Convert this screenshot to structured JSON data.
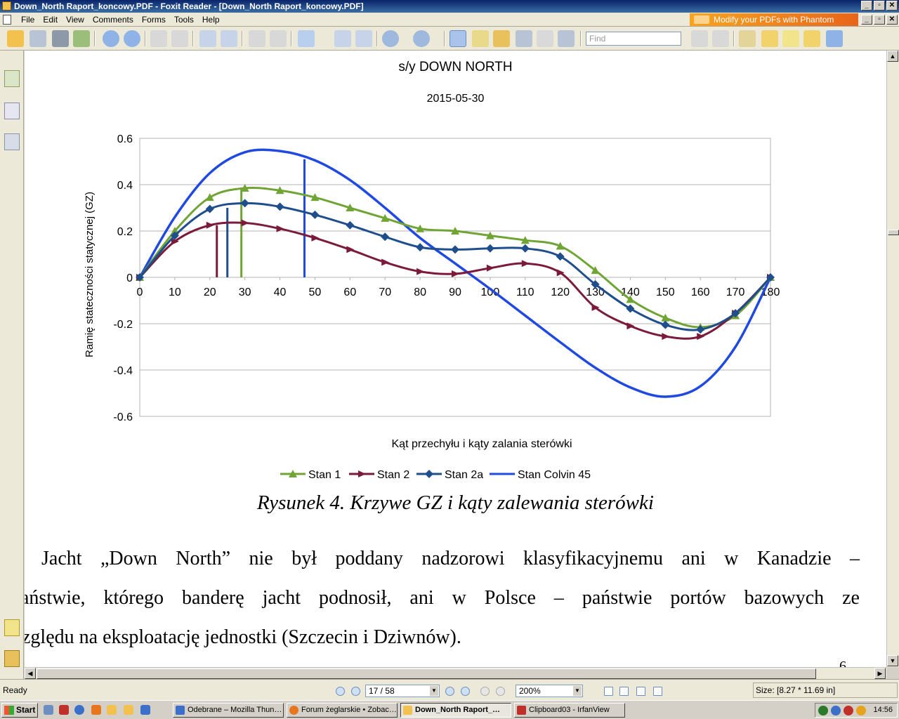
{
  "window": {
    "title": "Down_North Raport_koncowy.PDF - Foxit Reader - [Down_North Raport_koncowy.PDF]",
    "min": "_",
    "max": "▫",
    "close": "✕"
  },
  "menu": {
    "items": [
      "File",
      "Edit",
      "View",
      "Comments",
      "Forms",
      "Tools",
      "Help"
    ],
    "banner": "Modify your PDFs with Phantom"
  },
  "toolbar": {
    "find_placeholder": "Find"
  },
  "page": {
    "chart_caption": "Rysunek 4. Krzywe GZ i kąty zalewania sterówki",
    "paragraph": [
      "Jacht „Down North” nie był poddany nadzorowi klasyfikacyjnemu ani w Kanadzie –",
      "ańs­twie, którego banderę jacht podnosił, ani w Polsce – państwie portów bazowych ze",
      "zględu na eksploatację jednostki (Szczecin i Dziwnów)."
    ],
    "page_number": "6"
  },
  "chart_data": {
    "type": "line",
    "title": "s/y DOWN NORTH",
    "subtitle": "2015-05-30",
    "xlabel": "Kąt przechyłu i kąty zalania sterówki",
    "ylabel": "Ramię stateczności statycznej (GZ)",
    "xlim": [
      0,
      180
    ],
    "ylim": [
      -0.6,
      0.6
    ],
    "x_ticks": [
      0,
      10,
      20,
      30,
      40,
      50,
      60,
      70,
      80,
      90,
      100,
      110,
      120,
      130,
      140,
      150,
      160,
      170,
      180
    ],
    "y_ticks": [
      -0.6,
      -0.4,
      -0.2,
      0,
      0.2,
      0.4,
      0.6
    ],
    "y_tick_labels": [
      "-0.6",
      "-0.4",
      "-0.2",
      "0",
      "0.2",
      "0.4",
      "0.6"
    ],
    "grid": "horizontal",
    "legend": "bottom",
    "series": [
      {
        "name": "Stan 1",
        "color": "#70a536",
        "marker": "triangle",
        "x": [
          0,
          10,
          20,
          30,
          40,
          50,
          60,
          70,
          80,
          90,
          100,
          110,
          120,
          130,
          140,
          150,
          160,
          170,
          180
        ],
        "y": [
          0,
          0.2,
          0.345,
          0.385,
          0.375,
          0.345,
          0.3,
          0.255,
          0.21,
          0.2,
          0.18,
          0.16,
          0.135,
          0.03,
          -0.095,
          -0.175,
          -0.215,
          -0.165,
          0
        ]
      },
      {
        "name": "Stan 2",
        "color": "#7b1a3a",
        "marker": "arrow",
        "x": [
          0,
          10,
          20,
          30,
          40,
          50,
          60,
          70,
          80,
          90,
          100,
          110,
          120,
          130,
          140,
          150,
          160,
          170,
          180
        ],
        "y": [
          0,
          0.155,
          0.225,
          0.235,
          0.21,
          0.17,
          0.12,
          0.065,
          0.025,
          0.015,
          0.04,
          0.06,
          0.02,
          -0.13,
          -0.21,
          -0.255,
          -0.255,
          -0.155,
          0
        ]
      },
      {
        "name": "Stan 2a",
        "color": "#1e4e8c",
        "marker": "diamond",
        "x": [
          0,
          10,
          20,
          30,
          40,
          50,
          60,
          70,
          80,
          90,
          100,
          110,
          120,
          130,
          140,
          150,
          160,
          170,
          180
        ],
        "y": [
          0,
          0.18,
          0.295,
          0.32,
          0.305,
          0.27,
          0.225,
          0.175,
          0.13,
          0.12,
          0.125,
          0.125,
          0.09,
          -0.03,
          -0.135,
          -0.205,
          -0.225,
          -0.155,
          0
        ]
      },
      {
        "name": "Stan Colvin 45",
        "color": "#1f49e0",
        "marker": "none",
        "x": [
          0,
          10,
          20,
          30,
          40,
          50,
          60,
          70,
          80,
          90,
          100,
          110,
          120,
          130,
          140,
          150,
          160,
          170,
          180
        ],
        "y": [
          0,
          0.26,
          0.45,
          0.54,
          0.545,
          0.505,
          0.42,
          0.3,
          0.17,
          0.06,
          -0.05,
          -0.165,
          -0.28,
          -0.39,
          -0.475,
          -0.515,
          -0.47,
          -0.3,
          0
        ]
      }
    ],
    "flood_angles": [
      {
        "series": "Stan 2",
        "x": 22,
        "y": 0.225
      },
      {
        "series": "Stan 2a",
        "x": 25,
        "y": 0.3
      },
      {
        "series": "Stan 1",
        "x": 29,
        "y": 0.38
      },
      {
        "series": "Stan Colvin 45",
        "x": 47,
        "y": 0.51
      }
    ]
  },
  "status": {
    "ready": "Ready",
    "page": "17 / 58",
    "zoom": "200%",
    "size": "Size: [8.27 * 11.69 in]"
  },
  "taskbar": {
    "start": "Start",
    "tasks": [
      {
        "label": "Odebrane – Mozilla Thun…",
        "color": "#3b6fc9"
      },
      {
        "label": "Forum żeglarskie • Zobac…",
        "color": "#e8761e"
      },
      {
        "label": "Down_North Raport_…",
        "color": "#f2c14e"
      },
      {
        "label": "Clipboard03 - IrfanView",
        "color": "#c0302a"
      }
    ],
    "clock": "14:56"
  }
}
